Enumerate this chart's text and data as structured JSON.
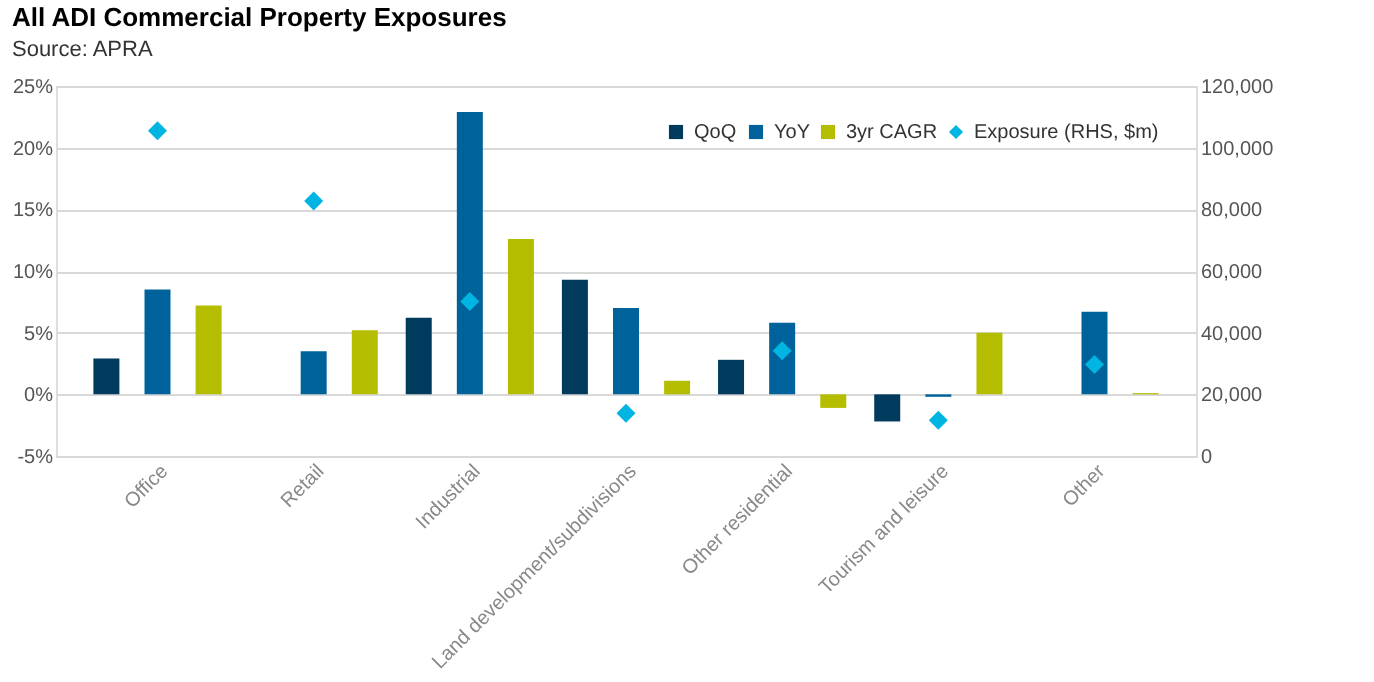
{
  "chart_data": {
    "type": "bar",
    "title": "All ADI Commercial Property Exposures",
    "subtitle": "Source: APRA",
    "categories": [
      "Office",
      "Retail",
      "Industrial",
      "Land development/subdivisions",
      "Other residential",
      "Tourism and leisure",
      "Other"
    ],
    "series": [
      {
        "name": "QoQ",
        "color": "#003a5d",
        "values": [
          2.9,
          null,
          6.2,
          9.3,
          2.8,
          -2.2,
          null
        ]
      },
      {
        "name": "YoY",
        "color": "#00629b",
        "values": [
          8.5,
          3.5,
          22.9,
          7.0,
          5.8,
          -0.2,
          6.7
        ]
      },
      {
        "name": "3yr CAGR",
        "color": "#b5bd00",
        "values": [
          7.2,
          5.2,
          12.6,
          1.1,
          -1.1,
          5.0,
          0.1
        ]
      },
      {
        "name": "Exposure (RHS, $m)",
        "color": "#00b5e2",
        "type": "scatter",
        "axis": "y2",
        "marker": "diamond",
        "values": [
          105500,
          82700,
          50100,
          13900,
          34100,
          11600,
          29700
        ]
      }
    ],
    "ylim": [
      -5,
      25
    ],
    "yticks": [
      {
        "value": -5,
        "label": "-5%"
      },
      {
        "value": 0,
        "label": "0%"
      },
      {
        "value": 5,
        "label": "5%"
      },
      {
        "value": 10,
        "label": "10%"
      },
      {
        "value": 15,
        "label": "15%"
      },
      {
        "value": 20,
        "label": "20%"
      },
      {
        "value": 25,
        "label": "25%"
      }
    ],
    "y2lim": [
      0,
      120000
    ],
    "y2ticks": [
      {
        "value": 0,
        "label": "0"
      },
      {
        "value": 20000,
        "label": "20,000"
      },
      {
        "value": 40000,
        "label": "40,000"
      },
      {
        "value": 60000,
        "label": "60,000"
      },
      {
        "value": 80000,
        "label": "80,000"
      },
      {
        "value": 100000,
        "label": "100,000"
      },
      {
        "value": 120000,
        "label": "120,000"
      }
    ],
    "grid": "y",
    "legend": "top right"
  }
}
